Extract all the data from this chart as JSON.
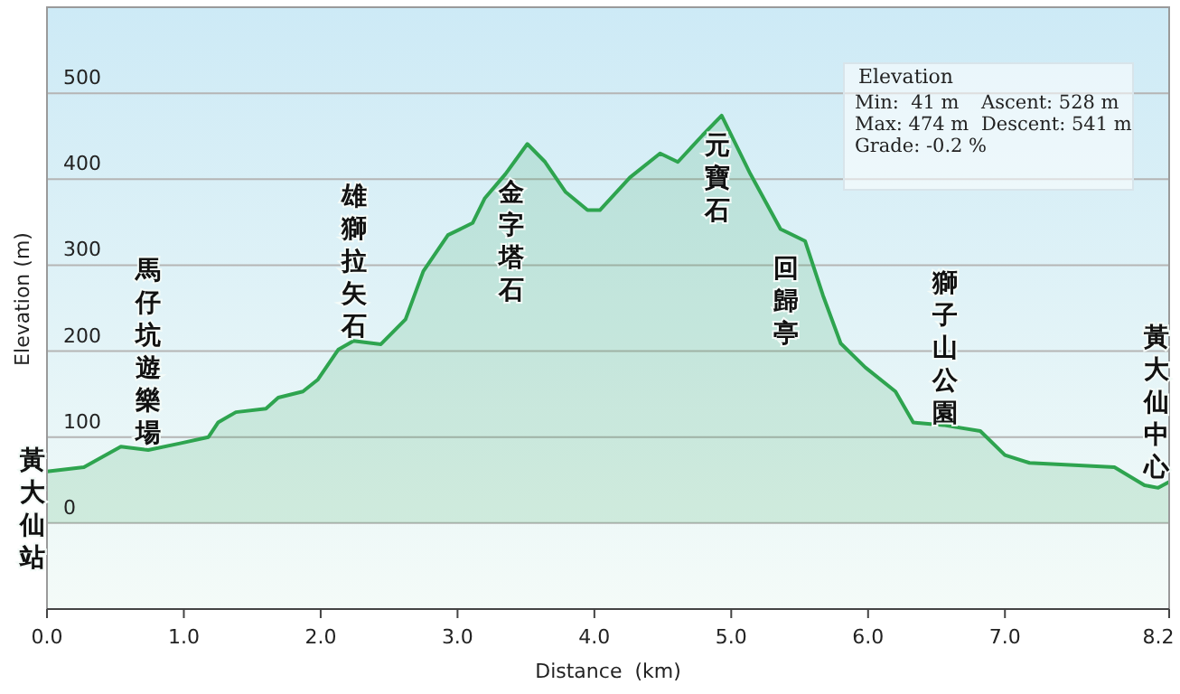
{
  "chart_data": {
    "type": "area",
    "xlabel": "Distance  (km)",
    "ylabel": "Elevation (m)",
    "x": [
      0,
      0.27,
      0.54,
      0.74,
      0.98,
      1.18,
      1.25,
      1.38,
      1.6,
      1.69,
      1.87,
      1.98,
      2.13,
      2.24,
      2.44,
      2.62,
      2.75,
      2.93,
      3.11,
      3.2,
      3.35,
      3.51,
      3.64,
      3.79,
      3.95,
      4.04,
      4.26,
      4.48,
      4.61,
      4.79,
      4.93,
      5.14,
      5.36,
      5.54,
      5.67,
      5.8,
      5.98,
      6.2,
      6.33,
      6.55,
      6.82,
      7.0,
      7.18,
      7.8,
      8.02,
      8.12,
      8.2
    ],
    "series": [
      {
        "color": "#2ea44f",
        "values": [
          60,
          65,
          89,
          85,
          93,
          100,
          117,
          129,
          133,
          146,
          153,
          167,
          202,
          212,
          208,
          237,
          293,
          335,
          349,
          378,
          406,
          441,
          420,
          385,
          364,
          364,
          402,
          430,
          420,
          451,
          474,
          406,
          342,
          328,
          265,
          209,
          181,
          153,
          117,
          114,
          107,
          79,
          70,
          65,
          44,
          41,
          48
        ]
      }
    ],
    "xlim": [
      0,
      8.2
    ],
    "xticks": [
      {
        "value": 0,
        "label": "0.0"
      },
      {
        "value": 1,
        "label": "1.0"
      },
      {
        "value": 2,
        "label": "2.0"
      },
      {
        "value": 3,
        "label": "3.0"
      },
      {
        "value": 4,
        "label": "4.0"
      },
      {
        "value": 5,
        "label": "5.0"
      },
      {
        "value": 6,
        "label": "6.0"
      },
      {
        "value": 7,
        "label": "7.0"
      },
      8.2
    ],
    "ylim": [
      -100,
      600
    ],
    "yticks": [
      0,
      100,
      200,
      300,
      400,
      500
    ],
    "grid": "y",
    "annotations": [
      "黃大仙站",
      "馬仔坑遊樂場",
      "雄獅拉矢石",
      "金字塔石",
      "元寶石",
      "回歸亭",
      "獅子山公園",
      "黃大仙中心",
      "Elevation",
      "Min:  41 m",
      "Ascent: 528 m",
      "Max: 474 m",
      "Descent: 541 m",
      "Grade: -0.2 %"
    ]
  }
}
